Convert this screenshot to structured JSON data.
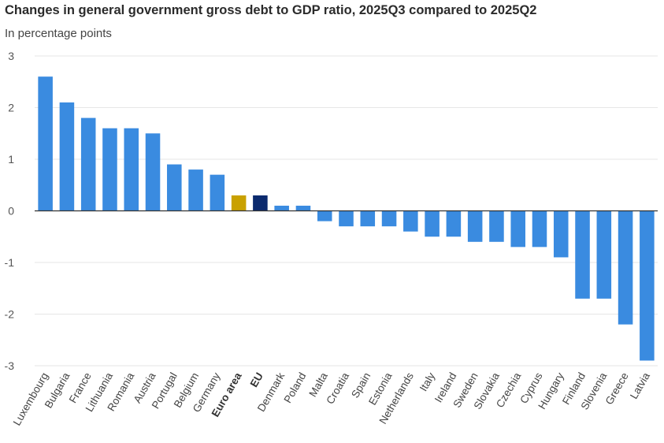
{
  "chart_data": {
    "type": "bar",
    "title": "Changes in general government gross debt to GDP ratio, 2025Q3 compared to 2025Q2",
    "subtitle": "In percentage points",
    "ylim": [
      -3,
      3
    ],
    "yticks": [
      3,
      2,
      1,
      0,
      -1,
      -2,
      -3
    ],
    "grid": true,
    "categories": [
      "Luxembourg",
      "Bulgaria",
      "France",
      "Lithuania",
      "Romania",
      "Austria",
      "Portugal",
      "Belgium",
      "Germany",
      "Euro area",
      "EU",
      "Denmark",
      "Poland",
      "Malta",
      "Croatia",
      "Spain",
      "Estonia",
      "Netherlands",
      "Italy",
      "Ireland",
      "Sweden",
      "Slovakia",
      "Czechia",
      "Cyprus",
      "Hungary",
      "Finland",
      "Slovenia",
      "Greece",
      "Latvia"
    ],
    "values": [
      2.6,
      2.1,
      1.8,
      1.6,
      1.6,
      1.5,
      0.9,
      0.8,
      0.7,
      0.3,
      0.3,
      0.1,
      0.1,
      -0.2,
      -0.3,
      -0.3,
      -0.3,
      -0.4,
      -0.5,
      -0.5,
      -0.6,
      -0.6,
      -0.7,
      -0.7,
      -0.9,
      -1.7,
      -1.7,
      -2.2,
      -2.9
    ],
    "bold_categories": [
      "Euro area",
      "EU"
    ],
    "colors": {
      "default": "#3a8be0",
      "Euro area": "#c9a100",
      "EU": "#0b2a6e",
      "grid": "#e6e6e6",
      "zero_line": "#333333"
    }
  }
}
